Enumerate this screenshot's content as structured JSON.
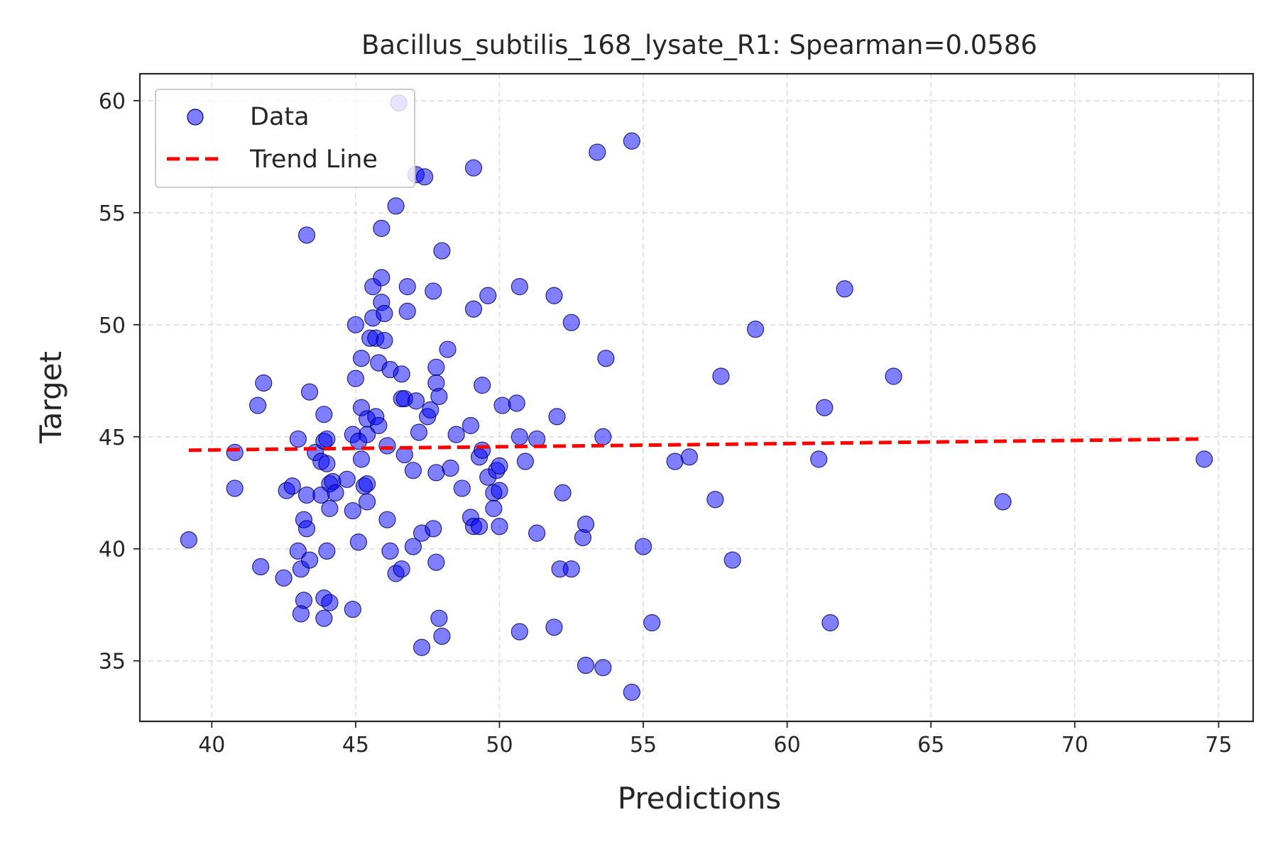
{
  "colors": {
    "background": "#ffffff",
    "axes_edge": "#262626",
    "grid": "#dddddd",
    "point_fill": "#0000ff",
    "point_edge": "#000060",
    "trend_line": "#ff0000",
    "text": "#262626"
  },
  "chart_data": {
    "type": "scatter",
    "title": "Bacillus_subtilis_168_lysate_R1: Spearman=0.0586",
    "xlabel": "Predictions",
    "ylabel": "Target",
    "xlim": [
      37.5,
      76.2
    ],
    "ylim": [
      32.3,
      61.2
    ],
    "xticks": [
      "40",
      "45",
      "50",
      "55",
      "60",
      "65",
      "70",
      "75"
    ],
    "yticks": [
      "35",
      "40",
      "45",
      "50",
      "55",
      "60"
    ],
    "grid": true,
    "legend_position": "top-left",
    "legend": {
      "points_label": "Data",
      "line_label": "Trend Line"
    },
    "series": [
      {
        "name": "Data",
        "kind": "scatter",
        "points": [
          [
            39.2,
            40.4
          ],
          [
            40.8,
            44.3
          ],
          [
            40.8,
            42.7
          ],
          [
            41.6,
            46.4
          ],
          [
            41.8,
            47.4
          ],
          [
            41.7,
            39.2
          ],
          [
            42.5,
            38.7
          ],
          [
            42.6,
            42.6
          ],
          [
            42.8,
            42.8
          ],
          [
            43.0,
            39.9
          ],
          [
            43.0,
            44.9
          ],
          [
            43.1,
            39.1
          ],
          [
            43.2,
            41.3
          ],
          [
            43.3,
            40.9
          ],
          [
            43.2,
            37.7
          ],
          [
            43.1,
            37.1
          ],
          [
            43.3,
            54.0
          ],
          [
            43.3,
            42.4
          ],
          [
            43.4,
            39.5
          ],
          [
            43.4,
            47.0
          ],
          [
            43.6,
            44.3
          ],
          [
            43.8,
            43.9
          ],
          [
            43.8,
            42.4
          ],
          [
            43.9,
            44.8
          ],
          [
            43.9,
            46.0
          ],
          [
            43.9,
            37.8
          ],
          [
            43.9,
            36.9
          ],
          [
            44.0,
            44.9
          ],
          [
            44.0,
            43.8
          ],
          [
            44.1,
            42.9
          ],
          [
            44.1,
            41.8
          ],
          [
            44.0,
            39.9
          ],
          [
            44.1,
            37.6
          ],
          [
            44.2,
            43.0
          ],
          [
            44.3,
            42.5
          ],
          [
            44.7,
            43.1
          ],
          [
            44.9,
            37.3
          ],
          [
            44.9,
            41.7
          ],
          [
            44.9,
            45.1
          ],
          [
            45.0,
            50.0
          ],
          [
            45.0,
            47.6
          ],
          [
            45.1,
            40.3
          ],
          [
            45.1,
            44.8
          ],
          [
            45.2,
            48.5
          ],
          [
            45.2,
            46.3
          ],
          [
            45.2,
            44.0
          ],
          [
            45.3,
            42.8
          ],
          [
            45.4,
            45.8
          ],
          [
            45.4,
            45.1
          ],
          [
            45.4,
            42.9
          ],
          [
            45.4,
            42.1
          ],
          [
            45.5,
            49.4
          ],
          [
            45.6,
            51.7
          ],
          [
            45.6,
            50.3
          ],
          [
            45.7,
            49.4
          ],
          [
            45.7,
            45.9
          ],
          [
            45.8,
            48.3
          ],
          [
            45.8,
            45.5
          ],
          [
            45.9,
            52.1
          ],
          [
            45.9,
            51.0
          ],
          [
            46.0,
            50.5
          ],
          [
            46.0,
            49.3
          ],
          [
            45.9,
            54.3
          ],
          [
            46.1,
            44.6
          ],
          [
            46.1,
            41.3
          ],
          [
            46.2,
            48.0
          ],
          [
            46.2,
            39.9
          ],
          [
            46.4,
            38.9
          ],
          [
            46.4,
            55.3
          ],
          [
            46.5,
            59.9
          ],
          [
            46.6,
            47.8
          ],
          [
            46.6,
            46.7
          ],
          [
            46.7,
            46.7
          ],
          [
            46.7,
            44.2
          ],
          [
            46.6,
            39.1
          ],
          [
            46.8,
            51.7
          ],
          [
            46.8,
            50.6
          ],
          [
            47.0,
            43.5
          ],
          [
            47.0,
            40.1
          ],
          [
            47.1,
            56.7
          ],
          [
            47.1,
            46.6
          ],
          [
            47.2,
            45.2
          ],
          [
            47.3,
            40.7
          ],
          [
            47.3,
            35.6
          ],
          [
            47.4,
            56.6
          ],
          [
            47.5,
            45.9
          ],
          [
            47.6,
            46.2
          ],
          [
            47.7,
            51.5
          ],
          [
            47.8,
            48.1
          ],
          [
            47.8,
            47.4
          ],
          [
            47.8,
            43.4
          ],
          [
            47.7,
            40.9
          ],
          [
            47.8,
            39.4
          ],
          [
            47.9,
            46.8
          ],
          [
            48.0,
            53.3
          ],
          [
            47.9,
            36.9
          ],
          [
            48.0,
            36.1
          ],
          [
            48.2,
            48.9
          ],
          [
            48.3,
            43.6
          ],
          [
            48.5,
            45.1
          ],
          [
            48.7,
            42.7
          ],
          [
            49.0,
            45.5
          ],
          [
            49.1,
            57.0
          ],
          [
            49.1,
            50.7
          ],
          [
            49.0,
            41.4
          ],
          [
            49.1,
            41.0
          ],
          [
            49.3,
            44.1
          ],
          [
            49.3,
            41.0
          ],
          [
            49.4,
            47.3
          ],
          [
            49.4,
            44.4
          ],
          [
            49.6,
            51.3
          ],
          [
            49.6,
            43.2
          ],
          [
            49.8,
            42.5
          ],
          [
            49.8,
            41.8
          ],
          [
            49.9,
            43.5
          ],
          [
            50.0,
            43.7
          ],
          [
            50.0,
            42.6
          ],
          [
            50.0,
            41.0
          ],
          [
            50.1,
            46.4
          ],
          [
            50.6,
            46.5
          ],
          [
            50.7,
            51.7
          ],
          [
            50.7,
            36.3
          ],
          [
            50.7,
            45.0
          ],
          [
            50.9,
            43.9
          ],
          [
            51.3,
            44.9
          ],
          [
            51.3,
            40.7
          ],
          [
            51.9,
            51.3
          ],
          [
            51.9,
            36.5
          ],
          [
            52.0,
            45.9
          ],
          [
            52.1,
            39.1
          ],
          [
            52.2,
            42.5
          ],
          [
            52.5,
            50.1
          ],
          [
            52.5,
            39.1
          ],
          [
            52.9,
            40.5
          ],
          [
            53.0,
            41.1
          ],
          [
            53.0,
            34.8
          ],
          [
            53.4,
            57.7
          ],
          [
            53.6,
            34.7
          ],
          [
            53.6,
            45.0
          ],
          [
            53.7,
            48.5
          ],
          [
            54.6,
            58.2
          ],
          [
            54.6,
            33.6
          ],
          [
            55.0,
            40.1
          ],
          [
            55.3,
            36.7
          ],
          [
            56.1,
            43.9
          ],
          [
            56.6,
            44.1
          ],
          [
            57.5,
            42.2
          ],
          [
            57.7,
            47.7
          ],
          [
            58.1,
            39.5
          ],
          [
            58.9,
            49.8
          ],
          [
            61.1,
            44.0
          ],
          [
            61.3,
            46.3
          ],
          [
            61.5,
            36.7
          ],
          [
            62.0,
            51.6
          ],
          [
            63.7,
            47.7
          ],
          [
            67.5,
            42.1
          ],
          [
            74.5,
            44.0
          ]
        ]
      },
      {
        "name": "Trend Line",
        "kind": "line",
        "points": [
          [
            39.2,
            44.4
          ],
          [
            74.5,
            44.9
          ]
        ]
      }
    ]
  }
}
